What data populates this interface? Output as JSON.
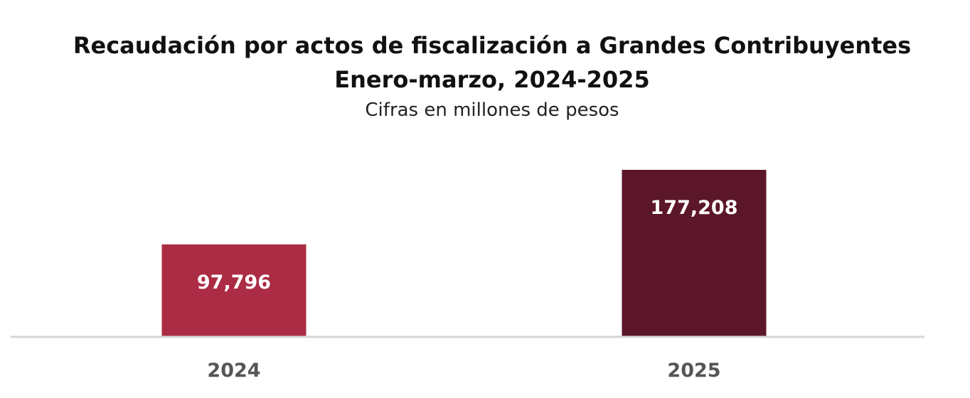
{
  "chart_data": {
    "type": "bar",
    "title": "Recaudación por actos de fiscalización a Grandes Contribuyentes",
    "title_line2": "Enero-marzo, 2024-2025",
    "subtitle": "Cifras en millones de pesos",
    "categories": [
      "2024",
      "2025"
    ],
    "values": [
      97796,
      177208
    ],
    "value_labels": [
      "97,796",
      "177,208"
    ],
    "colors": [
      "#ab2c44",
      "#5c1629"
    ],
    "xlabel": "",
    "ylabel": "",
    "ylim": [
      0,
      177208
    ],
    "grid": false,
    "legend": "none"
  }
}
